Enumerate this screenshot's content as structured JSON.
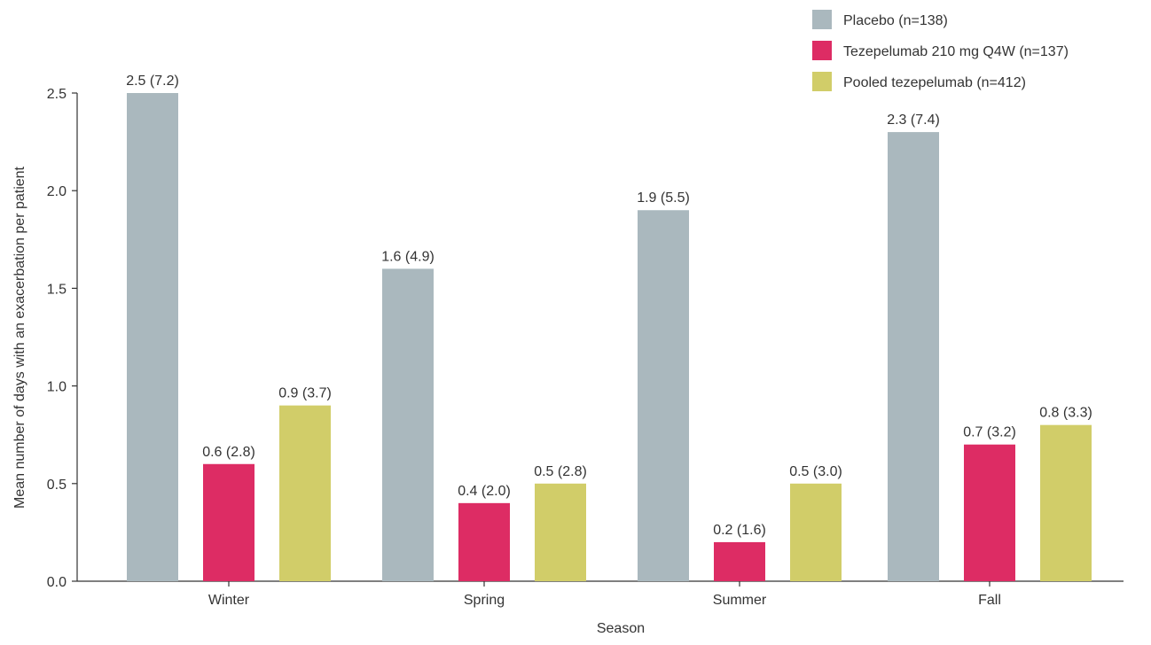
{
  "chart_data": {
    "type": "bar",
    "title": "",
    "xlabel": "Season",
    "ylabel": "Mean number of days with an exacerbation per patient",
    "ylim": [
      0,
      2.5
    ],
    "yticks": [
      "0.0",
      "0.5",
      "1.0",
      "1.5",
      "2.0",
      "2.5"
    ],
    "categories": [
      "Winter",
      "Spring",
      "Summer",
      "Fall"
    ],
    "legend_position": "top-right",
    "grid": false,
    "series": [
      {
        "name": "Placebo (n=138)",
        "color": "#aab8be",
        "values": [
          2.5,
          1.6,
          1.9,
          2.3
        ],
        "labels": [
          "2.5 (7.2)",
          "1.6 (4.9)",
          "1.9 (5.5)",
          "2.3 (7.4)"
        ]
      },
      {
        "name": "Tezepelumab 210 mg Q4W (n=137)",
        "color": "#dd2c64",
        "values": [
          0.6,
          0.4,
          0.2,
          0.7
        ],
        "labels": [
          "0.6 (2.8)",
          "0.4 (2.0)",
          "0.2 (1.6)",
          "0.7 (3.2)"
        ]
      },
      {
        "name": "Pooled tezepelumab (n=412)",
        "color": "#d1cd69",
        "values": [
          0.9,
          0.5,
          0.5,
          0.8
        ],
        "labels": [
          "0.9 (3.7)",
          "0.5 (2.8)",
          "0.5 (3.0)",
          "0.8 (3.3)"
        ]
      }
    ]
  }
}
